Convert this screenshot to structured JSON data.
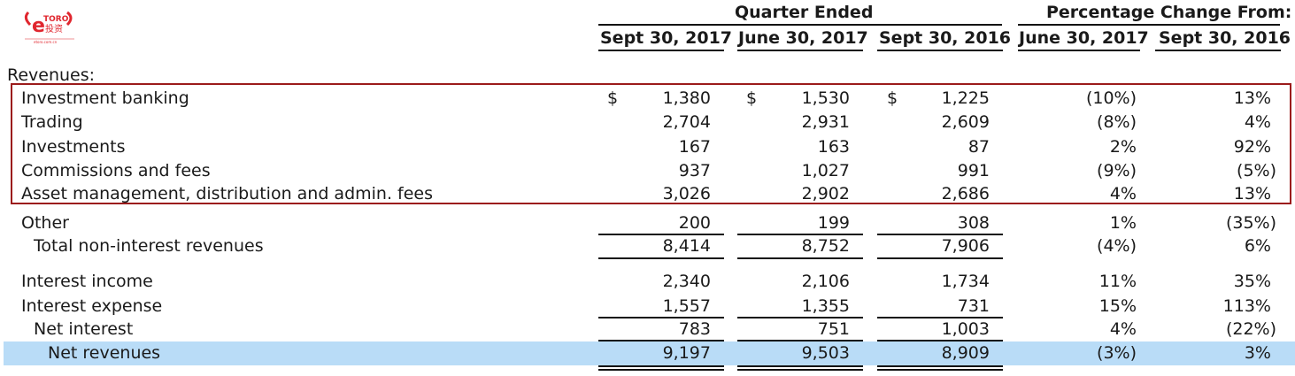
{
  "logo": {
    "brand": "eToro",
    "tagline": "投资",
    "url": "etoro.com.cn"
  },
  "header": {
    "group1": "Quarter Ended",
    "group2": "Percentage Change From:",
    "columns": [
      "Sept 30, 2017",
      "June 30, 2017",
      "Sept 30, 2016",
      "June 30, 2017",
      "Sept 30, 2016"
    ]
  },
  "section_title": "Revenues:",
  "rows": [
    {
      "label": "Investment banking",
      "dollar": "$",
      "v": [
        "1,380",
        "1,530",
        "1,225"
      ],
      "p": [
        "(10%)",
        "13%"
      ]
    },
    {
      "label": "Trading",
      "dollar": "",
      "v": [
        "2,704",
        "2,931",
        "2,609"
      ],
      "p": [
        "(8%)",
        "4%"
      ]
    },
    {
      "label": "Investments",
      "dollar": "",
      "v": [
        "167",
        "163",
        "87"
      ],
      "p": [
        "2%",
        "92%"
      ]
    },
    {
      "label": "Commissions and fees",
      "dollar": "",
      "v": [
        "937",
        "1,027",
        "991"
      ],
      "p": [
        "(9%)",
        "(5%)"
      ]
    },
    {
      "label": "Asset management, distribution and admin. fees",
      "dollar": "",
      "v": [
        "3,026",
        "2,902",
        "2,686"
      ],
      "p": [
        "4%",
        "13%"
      ]
    },
    {
      "label": "Other",
      "dollar": "",
      "v": [
        "200",
        "199",
        "308"
      ],
      "p": [
        "1%",
        "(35%)"
      ]
    },
    {
      "label": "Total non-interest revenues",
      "dollar": "",
      "v": [
        "8,414",
        "8,752",
        "7,906"
      ],
      "p": [
        "(4%)",
        "6%"
      ]
    },
    {
      "label": "Interest income",
      "dollar": "",
      "v": [
        "2,340",
        "2,106",
        "1,734"
      ],
      "p": [
        "11%",
        "35%"
      ]
    },
    {
      "label": "Interest expense",
      "dollar": "",
      "v": [
        "1,557",
        "1,355",
        "731"
      ],
      "p": [
        "15%",
        "113%"
      ]
    },
    {
      "label": "Net interest",
      "dollar": "",
      "v": [
        "783",
        "751",
        "1,003"
      ],
      "p": [
        "4%",
        "(22%)"
      ]
    },
    {
      "label": "Net revenues",
      "dollar": "",
      "v": [
        "9,197",
        "9,503",
        "8,909"
      ],
      "p": [
        "(3%)",
        "3%"
      ]
    }
  ],
  "colors": {
    "highlight_border": "#9b1b1b",
    "net_revenues_band": "#b9dcf7",
    "logo_red": "#e0262e"
  }
}
